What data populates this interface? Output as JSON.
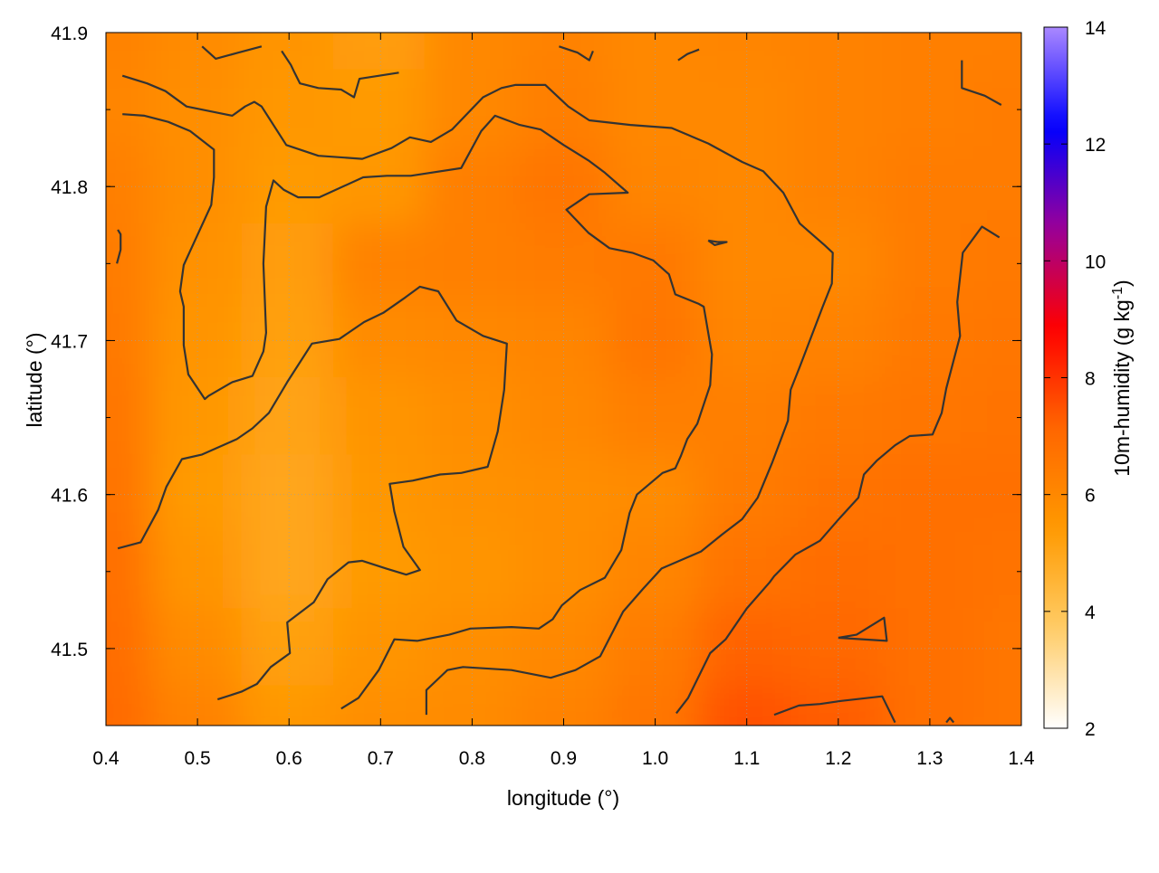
{
  "chart_data": {
    "type": "heatmap",
    "xlabel": "longitude (°)",
    "ylabel": "latitude (°)",
    "xlim": [
      0.4,
      1.4
    ],
    "ylim": [
      41.45,
      41.9
    ],
    "x_ticks": [
      0.4,
      0.5,
      0.6,
      0.7,
      0.8,
      0.9,
      1.0,
      1.1,
      1.2,
      1.3,
      1.4
    ],
    "x_tick_labels": [
      "0.4",
      "0.5",
      "0.6",
      "0.7",
      "0.8",
      "0.9",
      "1.0",
      "1.1",
      "1.2",
      "1.3",
      "1.4"
    ],
    "y_ticks": [
      41.5,
      41.6,
      41.7,
      41.8,
      41.9
    ],
    "y_tick_labels": [
      "41.5",
      "41.6",
      "41.7",
      "41.8",
      "41.9"
    ],
    "grid": true,
    "colorbar": {
      "label": "10m-humidity (g kg",
      "label_superscript": "-1",
      "label_suffix": ")",
      "range": [
        2,
        14
      ],
      "ticks": [
        2,
        4,
        6,
        8,
        10,
        12,
        14
      ],
      "tick_labels": [
        "2",
        "4",
        "6",
        "8",
        "10",
        "12",
        "14"
      ],
      "colors": [
        "#ffffff",
        "#ffcc66",
        "#ff9900",
        "#ff6600",
        "#ff0000",
        "#990099",
        "#0000ff",
        "#aa88ff"
      ]
    },
    "field": {
      "description_values_range": [
        4.8,
        7.8
      ],
      "rows_lat": [
        41.9,
        41.85,
        41.8,
        41.75,
        41.7,
        41.65,
        41.6,
        41.55,
        41.5,
        41.45
      ],
      "cols_lon": [
        0.4,
        0.5,
        0.6,
        0.7,
        0.8,
        0.9,
        1.0,
        1.1,
        1.2,
        1.3,
        1.4
      ],
      "values": [
        [
          6.2,
          5.9,
          5.6,
          5.3,
          6.0,
          6.2,
          6.0,
          6.1,
          6.2,
          6.3,
          6.3
        ],
        [
          6.1,
          5.8,
          5.5,
          5.4,
          6.0,
          6.3,
          6.0,
          6.0,
          6.2,
          6.3,
          6.4
        ],
        [
          6.3,
          5.8,
          5.4,
          5.5,
          6.3,
          6.6,
          6.1,
          6.0,
          6.2,
          6.4,
          6.4
        ],
        [
          6.4,
          5.7,
          5.3,
          6.2,
          6.3,
          6.4,
          6.5,
          6.0,
          6.0,
          6.4,
          6.5
        ],
        [
          6.5,
          5.6,
          5.2,
          5.9,
          6.0,
          6.1,
          6.6,
          6.1,
          6.2,
          6.5,
          6.6
        ],
        [
          6.6,
          5.5,
          5.1,
          5.6,
          5.8,
          6.0,
          6.3,
          6.3,
          6.5,
          6.6,
          6.7
        ],
        [
          6.7,
          5.4,
          5.0,
          5.5,
          5.7,
          5.8,
          5.9,
          6.4,
          6.7,
          6.8,
          6.8
        ],
        [
          6.8,
          5.6,
          5.0,
          5.4,
          5.6,
          5.8,
          6.1,
          6.7,
          6.9,
          6.8,
          6.7
        ],
        [
          6.9,
          5.9,
          5.2,
          5.6,
          5.8,
          6.0,
          6.4,
          7.2,
          7.1,
          6.8,
          6.6
        ],
        [
          7.0,
          6.2,
          5.5,
          5.8,
          5.9,
          6.2,
          6.6,
          7.5,
          7.3,
          6.8,
          6.6
        ]
      ]
    },
    "contours": [
      [
        [
          0.418,
          41.872
        ],
        [
          0.445,
          41.867
        ],
        [
          0.465,
          41.862
        ],
        [
          0.488,
          41.852
        ],
        [
          0.538,
          41.846
        ],
        [
          0.552,
          41.852
        ],
        [
          0.562,
          41.855
        ],
        [
          0.57,
          41.852
        ],
        [
          0.597,
          41.827
        ],
        [
          0.632,
          41.82
        ],
        [
          0.68,
          41.818
        ],
        [
          0.712,
          41.825
        ],
        [
          0.732,
          41.832
        ],
        [
          0.755,
          41.829
        ],
        [
          0.778,
          41.837
        ],
        [
          0.812,
          41.858
        ],
        [
          0.832,
          41.864
        ],
        [
          0.847,
          41.866
        ],
        [
          0.88,
          41.866
        ],
        [
          0.905,
          41.852
        ],
        [
          0.928,
          41.843
        ],
        [
          0.973,
          41.84
        ],
        [
          1.018,
          41.838
        ],
        [
          1.058,
          41.828
        ],
        [
          1.095,
          41.816
        ],
        [
          1.118,
          41.81
        ],
        [
          1.14,
          41.796
        ],
        [
          1.158,
          41.776
        ],
        [
          1.185,
          41.762
        ],
        [
          1.194,
          41.757
        ],
        [
          1.193,
          41.737
        ],
        [
          1.183,
          41.722
        ],
        [
          1.158,
          41.683
        ],
        [
          1.148,
          41.668
        ],
        [
          1.145,
          41.648
        ],
        [
          1.128,
          41.621
        ],
        [
          1.112,
          41.598
        ],
        [
          1.095,
          41.584
        ],
        [
          1.073,
          41.574
        ],
        [
          1.05,
          41.563
        ],
        [
          1.007,
          41.552
        ],
        [
          0.987,
          41.539
        ],
        [
          0.965,
          41.524
        ],
        [
          0.94,
          41.495
        ],
        [
          0.913,
          41.486
        ],
        [
          0.886,
          41.481
        ],
        [
          0.843,
          41.486
        ],
        [
          0.79,
          41.488
        ],
        [
          0.773,
          41.486
        ],
        [
          0.766,
          41.482
        ],
        [
          0.75,
          41.473
        ],
        [
          0.75,
          41.457
        ]
      ],
      [
        [
          0.418,
          41.847
        ],
        [
          0.442,
          41.846
        ],
        [
          0.468,
          41.842
        ],
        [
          0.492,
          41.836
        ],
        [
          0.518,
          41.824
        ],
        [
          0.518,
          41.806
        ],
        [
          0.515,
          41.788
        ],
        [
          0.498,
          41.766
        ],
        [
          0.485,
          41.749
        ],
        [
          0.481,
          41.732
        ],
        [
          0.485,
          41.722
        ],
        [
          0.485,
          41.697
        ],
        [
          0.49,
          41.678
        ],
        [
          0.508,
          41.662
        ],
        [
          0.512,
          41.664
        ],
        [
          0.538,
          41.673
        ],
        [
          0.56,
          41.677
        ],
        [
          0.572,
          41.693
        ],
        [
          0.575,
          41.705
        ],
        [
          0.572,
          41.75
        ],
        [
          0.575,
          41.787
        ],
        [
          0.583,
          41.804
        ],
        [
          0.594,
          41.798
        ],
        [
          0.61,
          41.793
        ],
        [
          0.633,
          41.793
        ],
        [
          0.681,
          41.806
        ],
        [
          0.707,
          41.807
        ],
        [
          0.733,
          41.807
        ],
        [
          0.788,
          41.812
        ],
        [
          0.81,
          41.836
        ],
        [
          0.825,
          41.846
        ],
        [
          0.852,
          41.84
        ],
        [
          0.875,
          41.837
        ],
        [
          0.9,
          41.827
        ],
        [
          0.927,
          41.817
        ],
        [
          0.945,
          41.809
        ],
        [
          0.97,
          41.796
        ],
        [
          0.928,
          41.795
        ],
        [
          0.903,
          41.785
        ],
        [
          0.927,
          41.77
        ],
        [
          0.95,
          41.76
        ],
        [
          0.975,
          41.757
        ],
        [
          0.998,
          41.752
        ],
        [
          1.015,
          41.743
        ],
        [
          1.022,
          41.73
        ],
        [
          1.047,
          41.724
        ],
        [
          1.053,
          41.722
        ],
        [
          1.062,
          41.691
        ],
        [
          1.06,
          41.671
        ],
        [
          1.046,
          41.646
        ],
        [
          1.035,
          41.636
        ],
        [
          1.028,
          41.625
        ],
        [
          1.022,
          41.617
        ],
        [
          1.008,
          41.614
        ],
        [
          0.98,
          41.6
        ],
        [
          0.972,
          41.588
        ],
        [
          0.963,
          41.564
        ],
        [
          0.945,
          41.546
        ],
        [
          0.918,
          41.538
        ],
        [
          0.898,
          41.528
        ],
        [
          0.888,
          41.519
        ],
        [
          0.873,
          41.513
        ],
        [
          0.843,
          41.514
        ],
        [
          0.798,
          41.513
        ],
        [
          0.775,
          41.509
        ],
        [
          0.74,
          41.505
        ],
        [
          0.715,
          41.506
        ],
        [
          0.698,
          41.486
        ],
        [
          0.676,
          41.468
        ],
        [
          0.657,
          41.461
        ]
      ],
      [
        [
          0.413,
          41.565
        ],
        [
          0.438,
          41.569
        ],
        [
          0.457,
          41.59
        ],
        [
          0.466,
          41.605
        ],
        [
          0.483,
          41.623
        ],
        [
          0.505,
          41.626
        ],
        [
          0.543,
          41.636
        ],
        [
          0.56,
          41.643
        ],
        [
          0.578,
          41.653
        ],
        [
          0.598,
          41.673
        ],
        [
          0.625,
          41.698
        ],
        [
          0.655,
          41.701
        ],
        [
          0.682,
          41.712
        ],
        [
          0.703,
          41.718
        ],
        [
          0.727,
          41.728
        ],
        [
          0.743,
          41.735
        ],
        [
          0.763,
          41.732
        ],
        [
          0.783,
          41.713
        ],
        [
          0.812,
          41.703
        ],
        [
          0.838,
          41.698
        ],
        [
          0.835,
          41.668
        ],
        [
          0.828,
          41.641
        ],
        [
          0.817,
          41.618
        ],
        [
          0.788,
          41.614
        ],
        [
          0.765,
          41.613
        ],
        [
          0.735,
          41.609
        ],
        [
          0.71,
          41.607
        ],
        [
          0.715,
          41.589
        ],
        [
          0.725,
          41.566
        ],
        [
          0.743,
          41.551
        ],
        [
          0.728,
          41.548
        ],
        [
          0.706,
          41.552
        ],
        [
          0.68,
          41.557
        ],
        [
          0.665,
          41.556
        ],
        [
          0.642,
          41.545
        ],
        [
          0.627,
          41.53
        ],
        [
          0.598,
          41.517
        ],
        [
          0.601,
          41.497
        ],
        [
          0.58,
          41.488
        ],
        [
          0.565,
          41.477
        ],
        [
          0.548,
          41.472
        ],
        [
          0.522,
          41.467
        ]
      ],
      [
        [
          1.023,
          41.458
        ],
        [
          1.036,
          41.468
        ],
        [
          1.06,
          41.497
        ],
        [
          1.077,
          41.506
        ],
        [
          1.1,
          41.526
        ],
        [
          1.125,
          41.543
        ],
        [
          1.13,
          41.547
        ],
        [
          1.153,
          41.561
        ],
        [
          1.18,
          41.57
        ],
        [
          1.202,
          41.585
        ],
        [
          1.222,
          41.598
        ],
        [
          1.228,
          41.613
        ],
        [
          1.242,
          41.622
        ],
        [
          1.262,
          41.632
        ],
        [
          1.278,
          41.638
        ],
        [
          1.303,
          41.639
        ],
        [
          1.313,
          41.653
        ],
        [
          1.318,
          41.669
        ],
        [
          1.333,
          41.703
        ],
        [
          1.33,
          41.725
        ],
        [
          1.336,
          41.757
        ],
        [
          1.357,
          41.774
        ],
        [
          1.376,
          41.767
        ]
      ],
      [
        [
          0.505,
          41.891
        ],
        [
          0.52,
          41.883
        ],
        [
          0.545,
          41.887
        ],
        [
          0.57,
          41.891
        ]
      ],
      [
        [
          0.592,
          41.888
        ],
        [
          0.602,
          41.879
        ],
        [
          0.606,
          41.874
        ],
        [
          0.612,
          41.867
        ],
        [
          0.632,
          41.864
        ],
        [
          0.657,
          41.863
        ],
        [
          0.671,
          41.858
        ],
        [
          0.677,
          41.87
        ],
        [
          0.72,
          41.874
        ]
      ],
      [
        [
          0.895,
          41.891
        ],
        [
          0.915,
          41.887
        ],
        [
          0.928,
          41.882
        ],
        [
          0.932,
          41.888
        ]
      ],
      [
        [
          1.025,
          41.882
        ],
        [
          1.035,
          41.886
        ],
        [
          1.048,
          41.889
        ]
      ],
      [
        [
          1.335,
          41.882
        ],
        [
          1.335,
          41.864
        ],
        [
          1.36,
          41.859
        ],
        [
          1.378,
          41.853
        ]
      ],
      [
        [
          0.413,
          41.772
        ],
        [
          0.416,
          41.769
        ],
        [
          0.416,
          41.759
        ],
        [
          0.412,
          41.75
        ]
      ],
      [
        [
          1.058,
          41.765
        ],
        [
          1.068,
          41.764
        ],
        [
          1.078,
          41.764
        ],
        [
          1.065,
          41.762
        ],
        [
          1.058,
          41.765
        ]
      ],
      [
        [
          1.2,
          41.507
        ],
        [
          1.22,
          41.509
        ],
        [
          1.25,
          41.52
        ],
        [
          1.253,
          41.505
        ],
        [
          1.2,
          41.507
        ]
      ],
      [
        [
          1.13,
          41.457
        ],
        [
          1.157,
          41.463
        ],
        [
          1.18,
          41.464
        ],
        [
          1.203,
          41.466
        ],
        [
          1.248,
          41.469
        ],
        [
          1.262,
          41.452
        ]
      ],
      [
        [
          1.318,
          41.452
        ],
        [
          1.322,
          41.455
        ],
        [
          1.326,
          41.452
        ]
      ]
    ]
  }
}
